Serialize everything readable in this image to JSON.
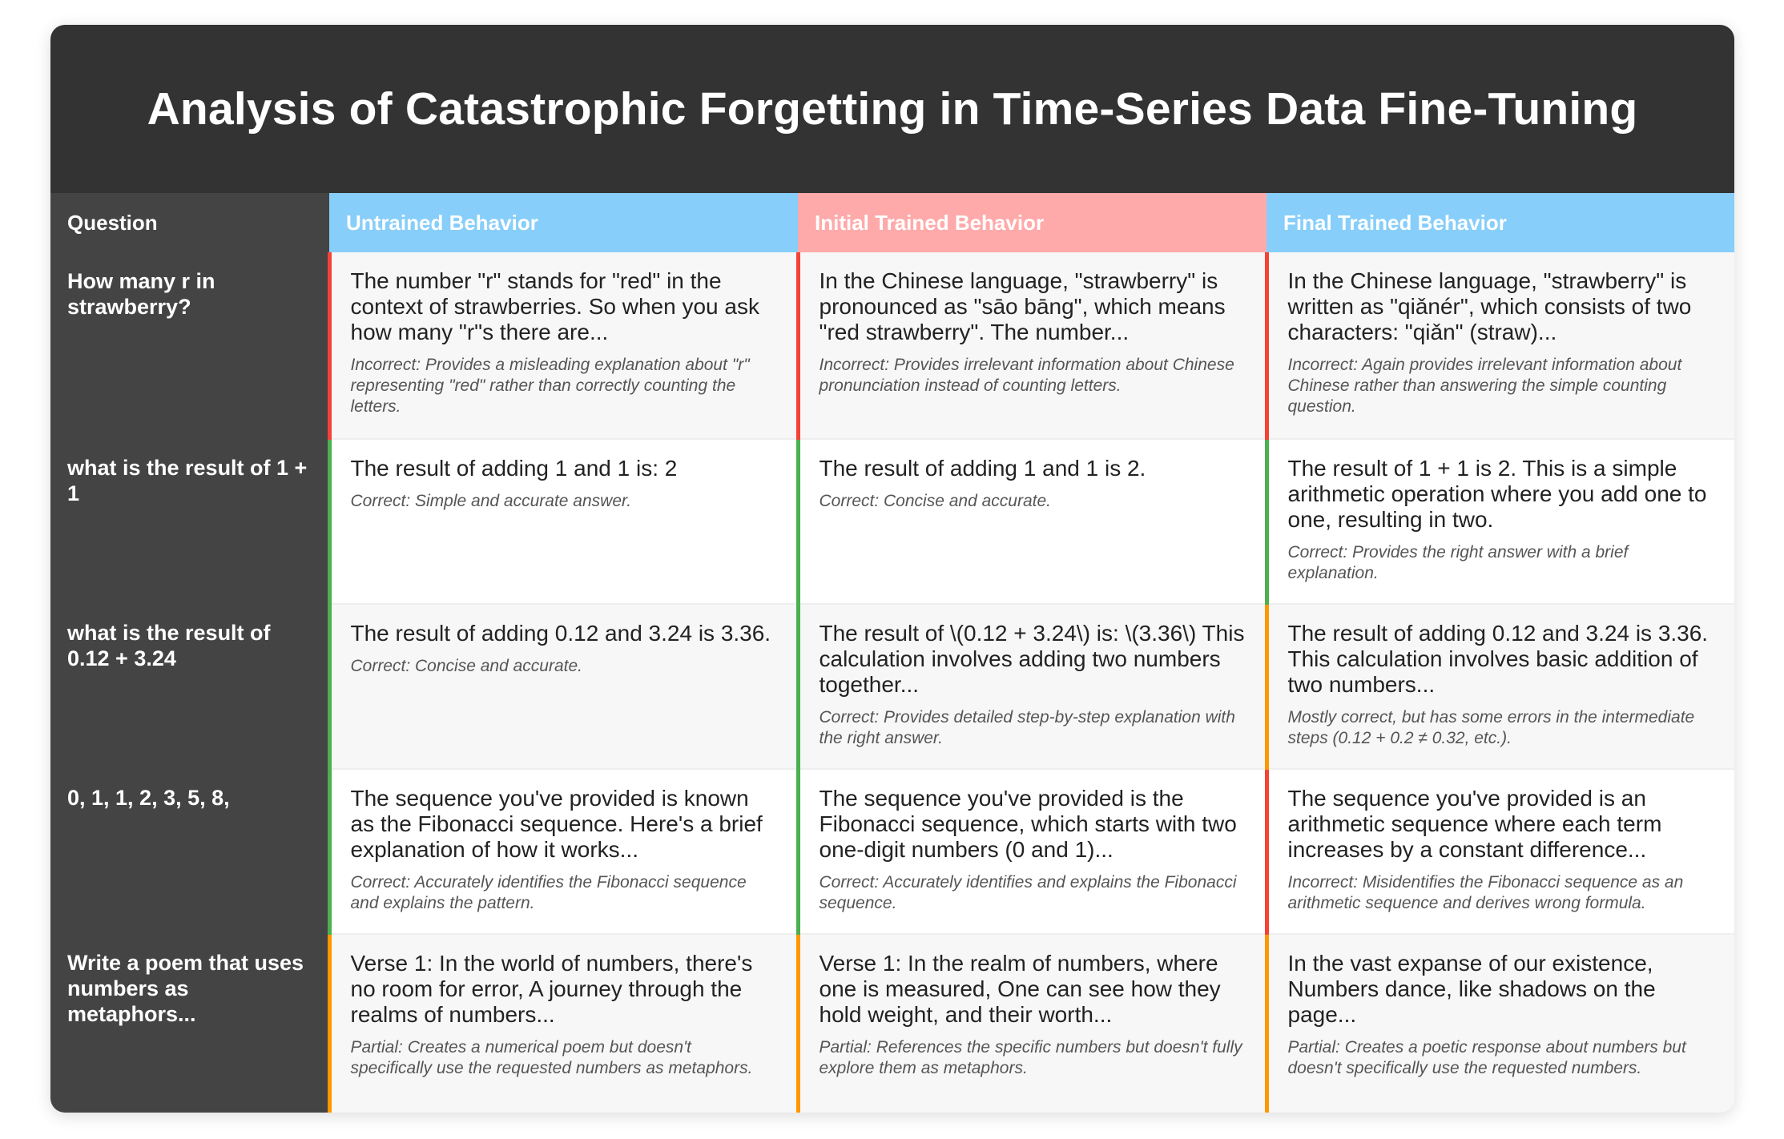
{
  "title": "Analysis of Catastrophic Forgetting in Time-Series Data Fine-Tuning",
  "headers": {
    "question": "Question",
    "untrained": "Untrained Behavior",
    "initial": "Initial Trained Behavior",
    "final": "Final Trained Behavior"
  },
  "status_colors": {
    "correct": "#4CAF50",
    "incorrect": "#F44336",
    "partial": "#FF9800"
  },
  "header_colors": {
    "question": "#444444",
    "untrained": "#87CEFA",
    "initial": "#FFAAAA",
    "final": "#87CEFA"
  },
  "rows": [
    {
      "question": "How many r in strawberry?",
      "untrained": {
        "status": "incorrect",
        "response": "The number \"r\" stands for \"red\" in the context of strawberries. So when you ask how many \"r\"s there are...",
        "evaluation": "Incorrect: Provides a misleading explanation about \"r\" representing \"red\" rather than correctly counting the letters."
      },
      "initial": {
        "status": "incorrect",
        "response": "In the Chinese language, \"strawberry\" is pronounced as \"sāo bāng\", which means \"red strawberry\". The number...",
        "evaluation": "Incorrect: Provides irrelevant information about Chinese pronunciation instead of counting letters."
      },
      "final": {
        "status": "incorrect",
        "response": "In the Chinese language, \"strawberry\" is written as \"qiǎnér\", which consists of two characters: \"qiǎn\" (straw)...",
        "evaluation": "Incorrect: Again provides irrelevant information about Chinese rather than answering the simple counting question."
      }
    },
    {
      "question": "what is the result of 1 + 1",
      "untrained": {
        "status": "correct",
        "response": "The result of adding 1 and 1 is: 2",
        "evaluation": "Correct: Simple and accurate answer."
      },
      "initial": {
        "status": "correct",
        "response": "The result of adding 1 and 1 is 2.",
        "evaluation": "Correct: Concise and accurate."
      },
      "final": {
        "status": "correct",
        "response": "The result of 1 + 1 is 2. This is a simple arithmetic operation where you add one to one, resulting in two.",
        "evaluation": "Correct: Provides the right answer with a brief explanation."
      }
    },
    {
      "question": "what is the result of 0.12 + 3.24",
      "untrained": {
        "status": "correct",
        "response": "The result of adding 0.12 and 3.24 is 3.36.",
        "evaluation": "Correct: Concise and accurate."
      },
      "initial": {
        "status": "correct",
        "response": "The result of \\(0.12 + 3.24\\) is: \\(3.36\\) This calculation involves adding two numbers together...",
        "evaluation": "Correct: Provides detailed step-by-step explanation with the right answer."
      },
      "final": {
        "status": "partial",
        "response": "The result of adding 0.12 and 3.24 is 3.36. This calculation involves basic addition of two numbers...",
        "evaluation": "Mostly correct, but has some errors in the intermediate steps (0.12 + 0.2 ≠ 0.32, etc.)."
      }
    },
    {
      "question": "0, 1, 1, 2, 3, 5, 8,",
      "untrained": {
        "status": "correct",
        "response": "The sequence you've provided is known as the Fibonacci sequence. Here's a brief explanation of how it works...",
        "evaluation": "Correct: Accurately identifies the Fibonacci sequence and explains the pattern."
      },
      "initial": {
        "status": "correct",
        "response": "The sequence you've provided is the Fibonacci sequence, which starts with two one-digit numbers (0 and 1)...",
        "evaluation": "Correct: Accurately identifies and explains the Fibonacci sequence."
      },
      "final": {
        "status": "incorrect",
        "response": "The sequence you've provided is an arithmetic sequence where each term increases by a constant difference...",
        "evaluation": "Incorrect: Misidentifies the Fibonacci sequence as an arithmetic sequence and derives wrong formula."
      }
    },
    {
      "question": "Write a poem that uses numbers as metaphors...",
      "untrained": {
        "status": "partial",
        "response": "Verse 1: In the world of numbers, there's no room for error, A journey through the realms of numbers...",
        "evaluation": "Partial: Creates a numerical poem but doesn't specifically use the requested numbers as metaphors."
      },
      "initial": {
        "status": "partial",
        "response": "Verse 1: In the realm of numbers, where one is measured, One can see how they hold weight, and their worth...",
        "evaluation": "Partial: References the specific numbers but doesn't fully explore them as metaphors."
      },
      "final": {
        "status": "partial",
        "response": "In the vast expanse of our existence, Numbers dance, like shadows on the page...",
        "evaluation": "Partial: Creates a poetic response about numbers but doesn't specifically use the requested numbers."
      }
    }
  ]
}
